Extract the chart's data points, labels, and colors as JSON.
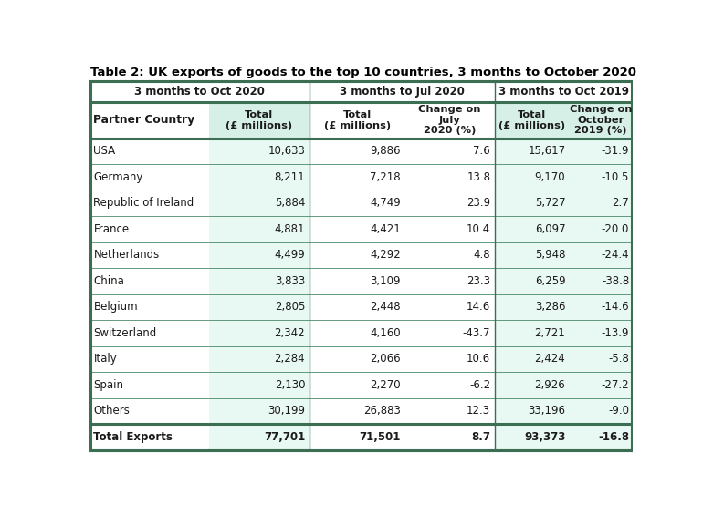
{
  "title": "Table 2: UK exports of goods to the top 10 countries, 3 months to October 2020",
  "col_group_headers": [
    "3 months to Oct 2020",
    "3 months to Jul 2020",
    "3 months to Oct 2019"
  ],
  "col_headers": [
    "Partner Country",
    "Total\n(£ millions)",
    "Total\n(£ millions)",
    "Change on\nJuly\n2020 (%)",
    "Total\n(£ millions)",
    "Change on\nOctober\n2019 (%)"
  ],
  "rows": [
    [
      "USA",
      "10,633",
      "9,886",
      "7.6",
      "15,617",
      "-31.9"
    ],
    [
      "Germany",
      "8,211",
      "7,218",
      "13.8",
      "9,170",
      "-10.5"
    ],
    [
      "Republic of Ireland",
      "5,884",
      "4,749",
      "23.9",
      "5,727",
      "2.7"
    ],
    [
      "France",
      "4,881",
      "4,421",
      "10.4",
      "6,097",
      "-20.0"
    ],
    [
      "Netherlands",
      "4,499",
      "4,292",
      "4.8",
      "5,948",
      "-24.4"
    ],
    [
      "China",
      "3,833",
      "3,109",
      "23.3",
      "6,259",
      "-38.8"
    ],
    [
      "Belgium",
      "2,805",
      "2,448",
      "14.6",
      "3,286",
      "-14.6"
    ],
    [
      "Switzerland",
      "2,342",
      "4,160",
      "-43.7",
      "2,721",
      "-13.9"
    ],
    [
      "Italy",
      "2,284",
      "2,066",
      "10.6",
      "2,424",
      "-5.8"
    ],
    [
      "Spain",
      "2,130",
      "2,270",
      "-6.2",
      "2,926",
      "-27.2"
    ],
    [
      "Others",
      "30,199",
      "26,883",
      "12.3",
      "33,196",
      "-9.0"
    ]
  ],
  "total_row": [
    "Total Exports",
    "77,701",
    "71,501",
    "8.7",
    "93,373",
    "-16.8"
  ],
  "bg_green_light": "#d6f0e8",
  "bg_green_data": "#e8f8f2",
  "bg_white": "#ffffff",
  "color_dark": "#3b6e52",
  "color_border": "#4a8a6a",
  "text_color": "#1a1a1a",
  "title_color": "#000000"
}
